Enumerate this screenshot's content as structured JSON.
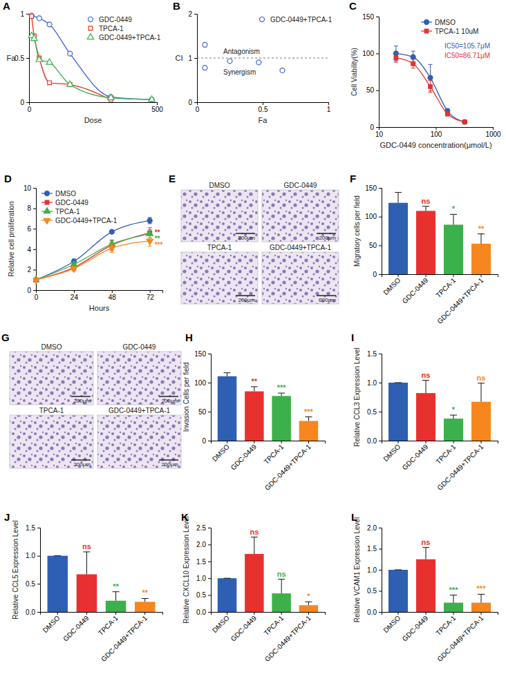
{
  "chart_data": [
    {
      "type": "line",
      "title": "A",
      "x_label": "Dose",
      "y_label": "Fa",
      "xlim": [
        0,
        500
      ],
      "xticks": [
        0,
        500
      ],
      "ylim": [
        0,
        1
      ],
      "yticks": [
        0,
        0.5,
        1
      ],
      "legend": "upper right",
      "series": [
        {
          "name": "GDC-0449",
          "color": "#3d5fd6",
          "marker": "circle-open",
          "x": [
            10,
            40,
            80,
            160,
            320,
            480
          ],
          "values": [
            0.98,
            0.95,
            0.88,
            0.55,
            0.06,
            0.03
          ]
        },
        {
          "name": "TPCA-1",
          "color": "#e8321e",
          "marker": "square-open",
          "x": [
            10,
            20,
            40,
            80,
            160,
            320
          ],
          "values": [
            0.97,
            0.75,
            0.5,
            0.22,
            0.2,
            0.03
          ]
        },
        {
          "name": "GDC-0449+TPCA-1",
          "color": "#3cb04a",
          "marker": "triangle-open",
          "x": [
            10,
            20,
            40,
            80,
            160,
            320,
            480
          ],
          "values": [
            0.75,
            0.72,
            0.48,
            0.45,
            0.2,
            0.05,
            0.03
          ]
        }
      ]
    },
    {
      "type": "scatter",
      "title": "B",
      "x_label": "Fa",
      "y_label": "CI",
      "xlim": [
        0,
        1
      ],
      "xticks": [
        0,
        0.5,
        1
      ],
      "ylim": [
        0,
        2
      ],
      "yticks": [
        0,
        1,
        2
      ],
      "legend": "upper right",
      "reference_line": 1,
      "annotations": [
        "Antagonism",
        "Synergism"
      ],
      "series": [
        {
          "name": "GDC-0449+TPCA-1",
          "color": "#3d5fd6",
          "marker": "circle-open",
          "x": [
            0.06,
            0.06,
            0.25,
            0.47,
            0.65
          ],
          "values": [
            1.3,
            0.78,
            0.93,
            0.9,
            0.72
          ]
        }
      ]
    },
    {
      "type": "line",
      "title": "C",
      "x_label": "GDC-0449 concentration(μmol/L)",
      "y_label": "Cell Viability(%)",
      "log": "x",
      "xlim": [
        10,
        1000
      ],
      "xticks": [
        10,
        100,
        1000
      ],
      "ylim": [
        0,
        150
      ],
      "yticks": [
        0,
        50,
        100,
        150
      ],
      "legend": "upper right",
      "annotations": [
        "IC50=105.7μM",
        "IC50=86.71μM"
      ],
      "series": [
        {
          "name": "DMSO",
          "color": "#2e5fb3",
          "marker": "circle",
          "x": [
            20,
            40,
            80,
            160,
            320
          ],
          "values": [
            100,
            95,
            67,
            22,
            7
          ],
          "errors": [
            10,
            8,
            18,
            3,
            2
          ]
        },
        {
          "name": "TPCA-1 10uM",
          "color": "#e8312f",
          "marker": "square",
          "x": [
            20,
            40,
            80,
            160,
            320
          ],
          "values": [
            94,
            86,
            55,
            18,
            7
          ],
          "errors": [
            6,
            6,
            8,
            3,
            2
          ]
        }
      ]
    },
    {
      "type": "line",
      "title": "D",
      "x_label": "Hours",
      "y_label": "Relative cell proliferation",
      "xlim": [
        0,
        80
      ],
      "xticks": [
        0,
        24,
        48,
        72
      ],
      "ylim": [
        0,
        10
      ],
      "yticks": [
        0,
        2,
        4,
        6,
        8,
        10
      ],
      "legend": "upper left",
      "series": [
        {
          "name": "DMSO",
          "color": "#2e5fb3",
          "marker": "circle",
          "x": [
            0,
            24,
            48,
            72
          ],
          "values": [
            1,
            2.8,
            5.7,
            6.8
          ],
          "errors": [
            0.05,
            0.25,
            0.1,
            0.3
          ],
          "significance": [
            null,
            null,
            null,
            null
          ]
        },
        {
          "name": "GDC-0449",
          "color": "#e8312f",
          "marker": "square",
          "x": [
            0,
            24,
            48,
            72
          ],
          "values": [
            1,
            2.2,
            4.4,
            5.6
          ],
          "errors": [
            0.05,
            0.3,
            0.5,
            0.5
          ],
          "significance": [
            null,
            null,
            null,
            "**"
          ]
        },
        {
          "name": "TPCA-1",
          "color": "#3cb04a",
          "marker": "triangle",
          "x": [
            0,
            24,
            48,
            72
          ],
          "values": [
            1,
            2.5,
            4.5,
            5.5
          ],
          "errors": [
            0.05,
            0.2,
            0.3,
            0.4
          ],
          "significance": [
            null,
            null,
            null,
            "**"
          ]
        },
        {
          "name": "GDC-0449+TPCA-1",
          "color": "#f7861e",
          "marker": "triangle-down",
          "x": [
            0,
            24,
            48,
            72
          ],
          "values": [
            1,
            2.1,
            4.1,
            4.8
          ],
          "errors": [
            0.05,
            0.2,
            0.4,
            0.5
          ],
          "significance": [
            null,
            null,
            null,
            "***"
          ]
        }
      ]
    },
    {
      "type": "image_grid",
      "title": "E",
      "labels": [
        "DMSO",
        "GDC-0449",
        "TPCA-1",
        "GDC-0449+TPCA-1"
      ],
      "scale_bar": "200μm"
    },
    {
      "type": "bar",
      "title": "F",
      "y_label": "Migratory cells per field",
      "categories": [
        "DMSO",
        "GDC-0449",
        "TPCA-1",
        "GDC-0449+TPCA-1"
      ],
      "values": [
        124,
        110,
        86,
        53
      ],
      "errors": [
        18,
        8,
        18,
        17
      ],
      "significance": [
        null,
        "ns",
        "*",
        "**"
      ],
      "colors": [
        "#2e5fb3",
        "#e8312f",
        "#3cb04a",
        "#f7861e"
      ],
      "ylim": [
        0,
        150
      ],
      "yticks": [
        0,
        50,
        100,
        150
      ]
    },
    {
      "type": "image_grid",
      "title": "G",
      "labels": [
        "DMSO",
        "GDC-0449",
        "TPCA-1",
        "GDC-0449+TPCA-1"
      ],
      "scale_bar": "200μm"
    },
    {
      "type": "bar",
      "title": "H",
      "y_label": "Invasion Cells per field",
      "categories": [
        "DMSO",
        "GDC-0449",
        "TPCA-1",
        "GDC-0449+TPCA-1"
      ],
      "values": [
        111,
        85,
        77,
        34
      ],
      "errors": [
        6,
        8,
        5,
        7
      ],
      "significance": [
        null,
        "**",
        "***",
        "***"
      ],
      "colors": [
        "#2e5fb3",
        "#e8312f",
        "#3cb04a",
        "#f7861e"
      ],
      "ylim": [
        0,
        150
      ],
      "yticks": [
        0,
        50,
        100,
        150
      ]
    },
    {
      "type": "bar",
      "title": "I",
      "y_label": "Relative CCL3 Expression Level",
      "categories": [
        "DMSO",
        "GDC-0449",
        "TPCA-1",
        "GDC-0449+TPCA-1"
      ],
      "values": [
        1,
        0.82,
        0.38,
        0.67
      ],
      "errors": [
        0,
        0.22,
        0.06,
        0.32
      ],
      "significance": [
        null,
        "ns",
        "*",
        "ns"
      ],
      "colors": [
        "#2e5fb3",
        "#e8312f",
        "#3cb04a",
        "#f7861e"
      ],
      "ylim": [
        0,
        1.5
      ],
      "yticks": [
        {
          "value": 0,
          "label": "0.0"
        },
        0.5,
        {
          "value": 1,
          "label": "1.0"
        },
        1.5
      ]
    },
    {
      "type": "bar",
      "title": "J",
      "y_label": "Relative CCL5 Expression Level",
      "categories": [
        "DMSO",
        "GDC-0449",
        "TPCA-1",
        "GDC-0449+TPCA-1"
      ],
      "values": [
        1,
        0.67,
        0.2,
        0.18
      ],
      "errors": [
        0,
        0.4,
        0.16,
        0.06
      ],
      "significance": [
        null,
        "ns",
        "**",
        "**"
      ],
      "colors": [
        "#2e5fb3",
        "#e8312f",
        "#3cb04a",
        "#f7861e"
      ],
      "ylim": [
        0,
        1.5
      ],
      "yticks": [
        {
          "value": 0,
          "label": "0.0"
        },
        0.5,
        {
          "value": 1,
          "label": "1.0"
        },
        1.5
      ]
    },
    {
      "type": "bar",
      "title": "K",
      "y_label": "Relative CXCL10 Expression Level",
      "categories": [
        "DMSO",
        "GDC-0449",
        "TPCA-1",
        "GDC-0449+TPCA-1"
      ],
      "values": [
        1,
        1.72,
        0.55,
        0.2
      ],
      "errors": [
        0,
        0.5,
        0.42,
        0.1
      ],
      "significance": [
        null,
        "ns",
        "ns",
        "*"
      ],
      "colors": [
        "#2e5fb3",
        "#e8312f",
        "#3cb04a",
        "#f7861e"
      ],
      "ylim": [
        0,
        2.5
      ],
      "yticks": [
        {
          "value": 0,
          "label": "0.0"
        },
        0.5,
        {
          "value": 1,
          "label": "1.0"
        },
        1.5,
        {
          "value": 2,
          "label": "2.0"
        },
        2.5
      ]
    },
    {
      "type": "bar",
      "title": "L",
      "y_label": "Relative VCAM1 Expression Level",
      "categories": [
        "DMSO",
        "GDC-0449",
        "TPCA-1",
        "GDC-0449+TPCA-1"
      ],
      "values": [
        1,
        1.25,
        0.22,
        0.22
      ],
      "errors": [
        0,
        0.28,
        0.18,
        0.2
      ],
      "significance": [
        null,
        "ns",
        "***",
        "***"
      ],
      "colors": [
        "#2e5fb3",
        "#e8312f",
        "#3cb04a",
        "#f7861e"
      ],
      "ylim": [
        0,
        2
      ],
      "yticks": [
        {
          "value": 0,
          "label": "0.0"
        },
        0.5,
        {
          "value": 1,
          "label": "1.0"
        },
        1.5,
        {
          "value": 2,
          "label": "2.0"
        }
      ]
    }
  ]
}
